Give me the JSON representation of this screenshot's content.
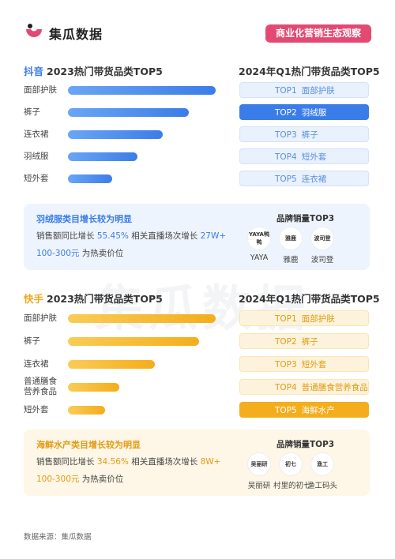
{
  "header": {
    "brand": "集瓜数据",
    "badge": "商业化营销生态观察",
    "logo_color": "#e24a73"
  },
  "watermark": "集瓜数据",
  "douyin": {
    "platform": "抖音",
    "title_2023": "2023热门带货品类TOP5",
    "title_2024": "2024年Q1热门带货品类TOP5",
    "categories_2023": [
      "面部护肤",
      "裤子",
      "连衣裙",
      "羽绒服",
      "短外套"
    ],
    "bar_values_2023": [
      1.0,
      0.82,
      0.64,
      0.47,
      0.3
    ],
    "ranks_2024": [
      {
        "rank": "TOP1",
        "name": "面部护肤"
      },
      {
        "rank": "TOP2",
        "name": "羽绒服"
      },
      {
        "rank": "TOP3",
        "name": "裤子"
      },
      {
        "rank": "TOP4",
        "name": "短外套"
      },
      {
        "rank": "TOP5",
        "name": "连衣裙"
      }
    ],
    "highlight_index": 1,
    "insight": {
      "heading": "羽绒服类目增长较为明显",
      "line1_prefix": "销售额同比增长",
      "growth": "55.45%",
      "line1_mid": "相关直播场次增长",
      "sessions": "27W+",
      "price": "100-300元",
      "price_suffix": "为热卖价位"
    },
    "brands_title": "品牌销量TOP3",
    "brands": [
      {
        "name": "YAYA",
        "logo_text": "YAYA鸭鸭"
      },
      {
        "name": "雅鹿",
        "logo_text": "雅鹿"
      },
      {
        "name": "波司登",
        "logo_text": "波司登"
      }
    ]
  },
  "kuaishou": {
    "platform": "快手",
    "title_2023": "2023热门带货品类TOP5",
    "title_2024": "2024年Q1热门带货品类TOP5",
    "categories_2023": [
      "面部护肤",
      "裤子",
      "连衣裙",
      "普通膳食营养食品",
      "短外套"
    ],
    "bar_values_2023": [
      1.0,
      0.89,
      0.59,
      0.35,
      0.25
    ],
    "ranks_2024": [
      {
        "rank": "TOP1",
        "name": "面部护肤"
      },
      {
        "rank": "TOP2",
        "name": "裤子"
      },
      {
        "rank": "TOP3",
        "name": "短外套"
      },
      {
        "rank": "TOP4",
        "name": "普通膳食营养食品"
      },
      {
        "rank": "TOP5",
        "name": "海鲜水产"
      }
    ],
    "highlight_index": 4,
    "insight": {
      "heading": "海鲜水产类目增长较为明显",
      "line1_prefix": "销售额同比增长",
      "growth": "34.56%",
      "line1_mid": "相关直播场次增长",
      "sessions": "8W+",
      "price": "100-300元",
      "price_suffix": "为热卖价位"
    },
    "brands_title": "品牌销量TOP3",
    "brands": [
      {
        "name": "吴丽研",
        "logo_text": "吴丽研"
      },
      {
        "name": "村里的初七",
        "logo_text": "初七"
      },
      {
        "name": "渔工码头",
        "logo_text": "渔工"
      }
    ]
  },
  "footer": "数据来源：集瓜数据"
}
